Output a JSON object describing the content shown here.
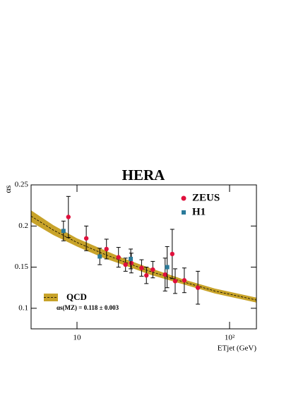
{
  "chart_data": {
    "type": "scatter",
    "title": "HERA",
    "xlabel": "ETjet (GeV)",
    "ylabel": "αs",
    "xscale": "log",
    "xlim": [
      5,
      150
    ],
    "ylim": [
      0.075,
      0.25
    ],
    "xticks": [
      10,
      {
        "value": 100,
        "label": "10²"
      }
    ],
    "yticks": [
      0.1,
      0.15,
      0.2,
      0.25
    ],
    "legend": "upper right",
    "series": [
      {
        "name": "ZEUS",
        "color": "#e0103c",
        "marker": "circle",
        "x": [
          8.78,
          11.5,
          15.6,
          18.7,
          20.8,
          22.7,
          26.5,
          28.5,
          31.4,
          37.8,
          42.1,
          44,
          50.5,
          62
        ],
        "values": [
          0.211,
          0.185,
          0.172,
          0.162,
          0.153,
          0.155,
          0.149,
          0.14,
          0.147,
          0.141,
          0.166,
          0.133,
          0.134,
          0.125
        ],
        "errors": [
          0.025,
          0.015,
          0.012,
          0.012,
          0.008,
          0.012,
          0.01,
          0.01,
          0.01,
          0.02,
          0.03,
          0.015,
          0.015,
          0.02
        ]
      },
      {
        "name": "H1",
        "color": "#2a7a9a",
        "marker": "square",
        "x": [
          8.15,
          14.1,
          22.5,
          39
        ],
        "values": [
          0.194,
          0.163,
          0.16,
          0.15
        ],
        "errors": [
          0.012,
          0.01,
          0.012,
          0.025
        ]
      }
    ],
    "band": {
      "name": "QCD",
      "note": "αs(MZ) = 0.118 ± 0.003",
      "color": "#c8a32a",
      "x": [
        5,
        7,
        10,
        15,
        20,
        30,
        50,
        80,
        150
      ],
      "values": [
        0.212,
        0.195,
        0.18,
        0.166,
        0.157,
        0.145,
        0.132,
        0.121,
        0.11
      ],
      "lower": [
        0.205,
        0.189,
        0.175,
        0.161,
        0.153,
        0.141,
        0.129,
        0.118,
        0.107
      ],
      "upper": [
        0.219,
        0.201,
        0.185,
        0.171,
        0.161,
        0.149,
        0.135,
        0.124,
        0.113
      ]
    }
  }
}
